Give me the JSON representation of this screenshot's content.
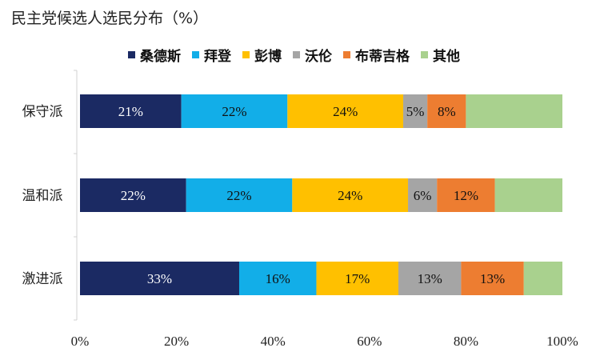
{
  "chart_data": {
    "type": "bar",
    "orientation": "horizontal",
    "stacked": true,
    "title": "民主党候选人选民分布（%）",
    "categories": [
      "保守派",
      "温和派",
      "激进派"
    ],
    "series": [
      {
        "name": "桑德斯",
        "color": "#1b2a63",
        "values": [
          21,
          22,
          33
        ]
      },
      {
        "name": "拜登",
        "color": "#12aee8",
        "values": [
          22,
          22,
          16
        ]
      },
      {
        "name": "彭博",
        "color": "#ffc000",
        "values": [
          24,
          24,
          17
        ]
      },
      {
        "name": "沃伦",
        "color": "#a5a5a5",
        "values": [
          5,
          6,
          13
        ]
      },
      {
        "name": "布蒂吉格",
        "color": "#ed7d31",
        "values": [
          8,
          12,
          13
        ]
      },
      {
        "name": "其他",
        "color": "#a9d18e",
        "values": [
          20,
          14,
          8
        ]
      }
    ],
    "data_labels": [
      [
        "21%",
        "22%",
        "24%",
        "5%",
        "8%",
        ""
      ],
      [
        "22%",
        "22%",
        "24%",
        "6%",
        "12%",
        ""
      ],
      [
        "33%",
        "16%",
        "17%",
        "13%",
        "13%",
        ""
      ]
    ],
    "xlim": [
      0,
      100
    ],
    "x_ticks": [
      0,
      20,
      40,
      60,
      80,
      100
    ],
    "x_tick_labels": [
      "0%",
      "20%",
      "40%",
      "60%",
      "80%",
      "100%"
    ],
    "grid": false,
    "legend_position": "top"
  }
}
